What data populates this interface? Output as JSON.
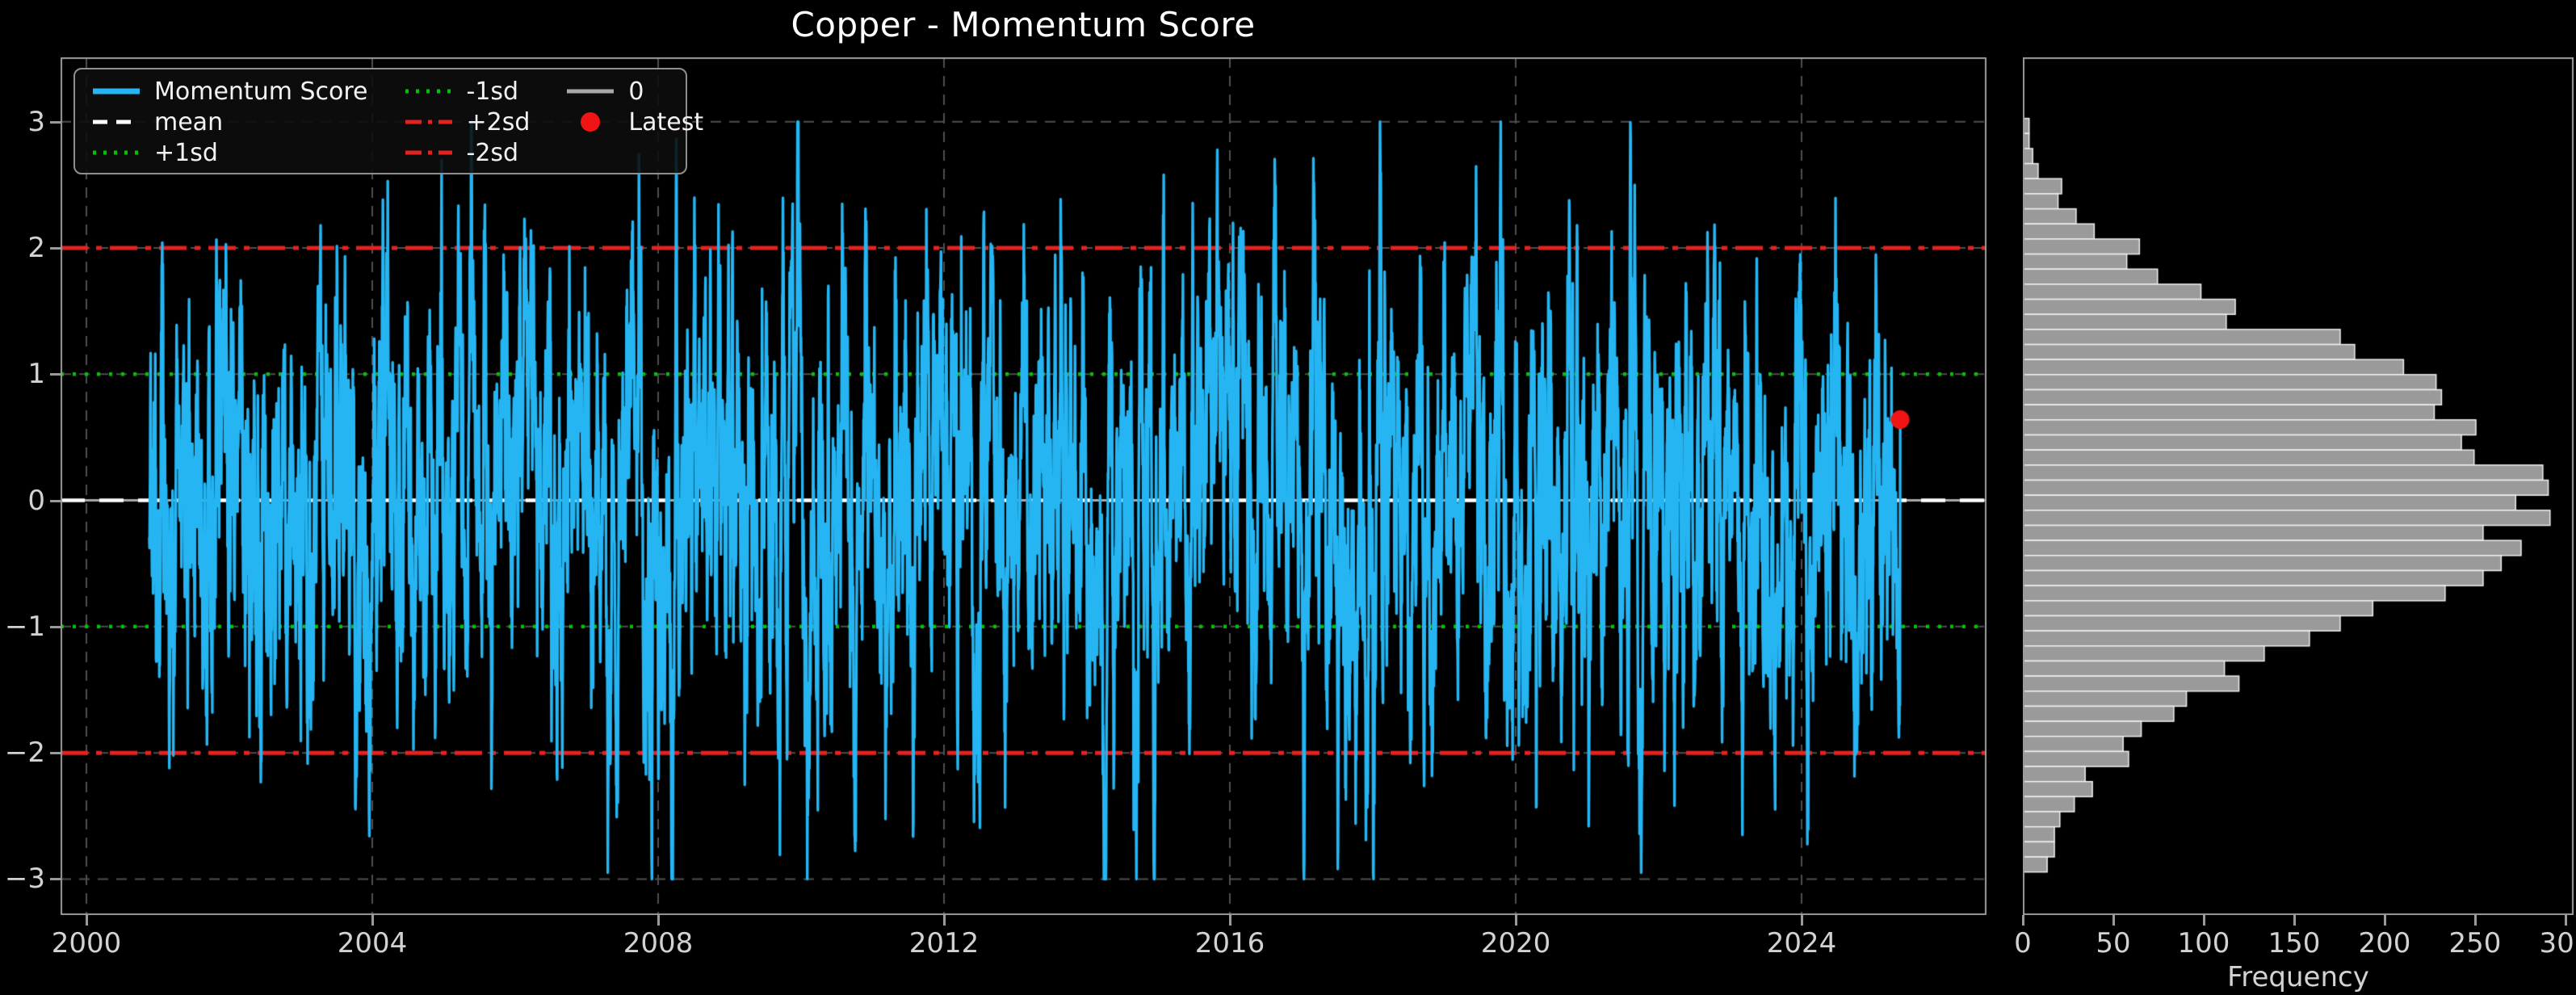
{
  "title": "Copper - Momentum Score",
  "colors": {
    "background": "#000000",
    "series": "#25b5f2",
    "mean": "#ffffff",
    "sd1": "#00c400",
    "sd2": "#e42320",
    "zero": "#a8a8a8",
    "latest": "#f01414",
    "hist_bar": "#9a9a9a",
    "hist_edge": "#f0f0f0",
    "grid": "#4f4f4f",
    "spine": "#9a9a9a",
    "title_text": "#ffffff",
    "tick_text": "#d2d2d2"
  },
  "legend": {
    "columns": [
      [
        {
          "label": "Momentum Score",
          "style": "solid",
          "color_key": "series"
        },
        {
          "label": "mean",
          "style": "dashed",
          "color_key": "mean"
        },
        {
          "label": "+1sd",
          "style": "dotted",
          "color_key": "sd1"
        }
      ],
      [
        {
          "label": "-1sd",
          "style": "dotted",
          "color_key": "sd1"
        },
        {
          "label": "+2sd",
          "style": "dashdot",
          "color_key": "sd2"
        },
        {
          "label": "-2sd",
          "style": "dashdot",
          "color_key": "sd2"
        }
      ],
      [
        {
          "label": "0",
          "style": "solid",
          "color_key": "zero"
        },
        {
          "label": "Latest",
          "style": "marker",
          "color_key": "latest"
        }
      ]
    ]
  },
  "chart_data": [
    {
      "type": "line",
      "title": "Copper - Momentum Score",
      "xlabel": "",
      "ylabel": "",
      "x_ticks": [
        "2000",
        "2004",
        "2008",
        "2012",
        "2016",
        "2020",
        "2024"
      ],
      "x_tick_years": [
        2000,
        2004,
        2008,
        2012,
        2016,
        2020,
        2024
      ],
      "y_ticks": [
        "3",
        "2",
        "1",
        "0",
        "−1",
        "−2",
        "−3"
      ],
      "y_tick_values": [
        3,
        2,
        1,
        0,
        -1,
        -2,
        -3
      ],
      "xlim": [
        1999.64,
        2026.6
      ],
      "ylim": [
        -3.285,
        3.51
      ],
      "grid": true,
      "legend_position": "upper left",
      "ref_lines": [
        {
          "label": "0",
          "value": 0,
          "style": "solid",
          "color_key": "zero"
        },
        {
          "label": "mean",
          "value": 0,
          "style": "dashed",
          "color_key": "mean"
        },
        {
          "label": "+1sd",
          "value": 1,
          "style": "dotted",
          "color_key": "sd1"
        },
        {
          "label": "-1sd",
          "value": -1,
          "style": "dotted",
          "color_key": "sd1"
        },
        {
          "label": "+2sd",
          "value": 2,
          "style": "dashdot",
          "color_key": "sd2"
        },
        {
          "label": "-2sd",
          "value": -2,
          "style": "dashdot",
          "color_key": "sd2"
        }
      ],
      "series": [
        {
          "name": "Momentum Score",
          "color_key": "series",
          "note": "dense daily momentum z-score 2001-2025; values unreadable at pixel scale, reproduced via seeded AR(1) generator with matching stats",
          "synthetic": true,
          "x_start": 2000.88,
          "x_end": 2025.38,
          "n": 6470,
          "seed": 20,
          "ar_phi": 0.85,
          "ar_sigma": 0.527,
          "clip": 3.0,
          "mean": 0,
          "sd": 1,
          "observed_max": 3.0,
          "observed_min": -2.9
        }
      ],
      "latest": {
        "label": "Latest",
        "x": 2025.38,
        "y": 0.64
      }
    },
    {
      "type": "bar",
      "orientation": "horizontal",
      "xlabel": "Frequency",
      "x_ticks": [
        "0",
        "50",
        "100",
        "150",
        "200",
        "250",
        "300"
      ],
      "x_tick_values": [
        0,
        50,
        100,
        150,
        200,
        250,
        300
      ],
      "xlim": [
        0,
        305
      ],
      "grid": false,
      "bins_value_top": 3.026,
      "bin_width": 0.1194,
      "frequencies": [
        3,
        3,
        5,
        8,
        21,
        19,
        29,
        39,
        64,
        57,
        74,
        98,
        117,
        112,
        175,
        183,
        210,
        228,
        231,
        227,
        250,
        242,
        249,
        287,
        290,
        272,
        291,
        254,
        275,
        264,
        254,
        233,
        193,
        175,
        158,
        133,
        111,
        119,
        90,
        83,
        65,
        55,
        58,
        34,
        38,
        28,
        20,
        17,
        17,
        13
      ]
    }
  ]
}
